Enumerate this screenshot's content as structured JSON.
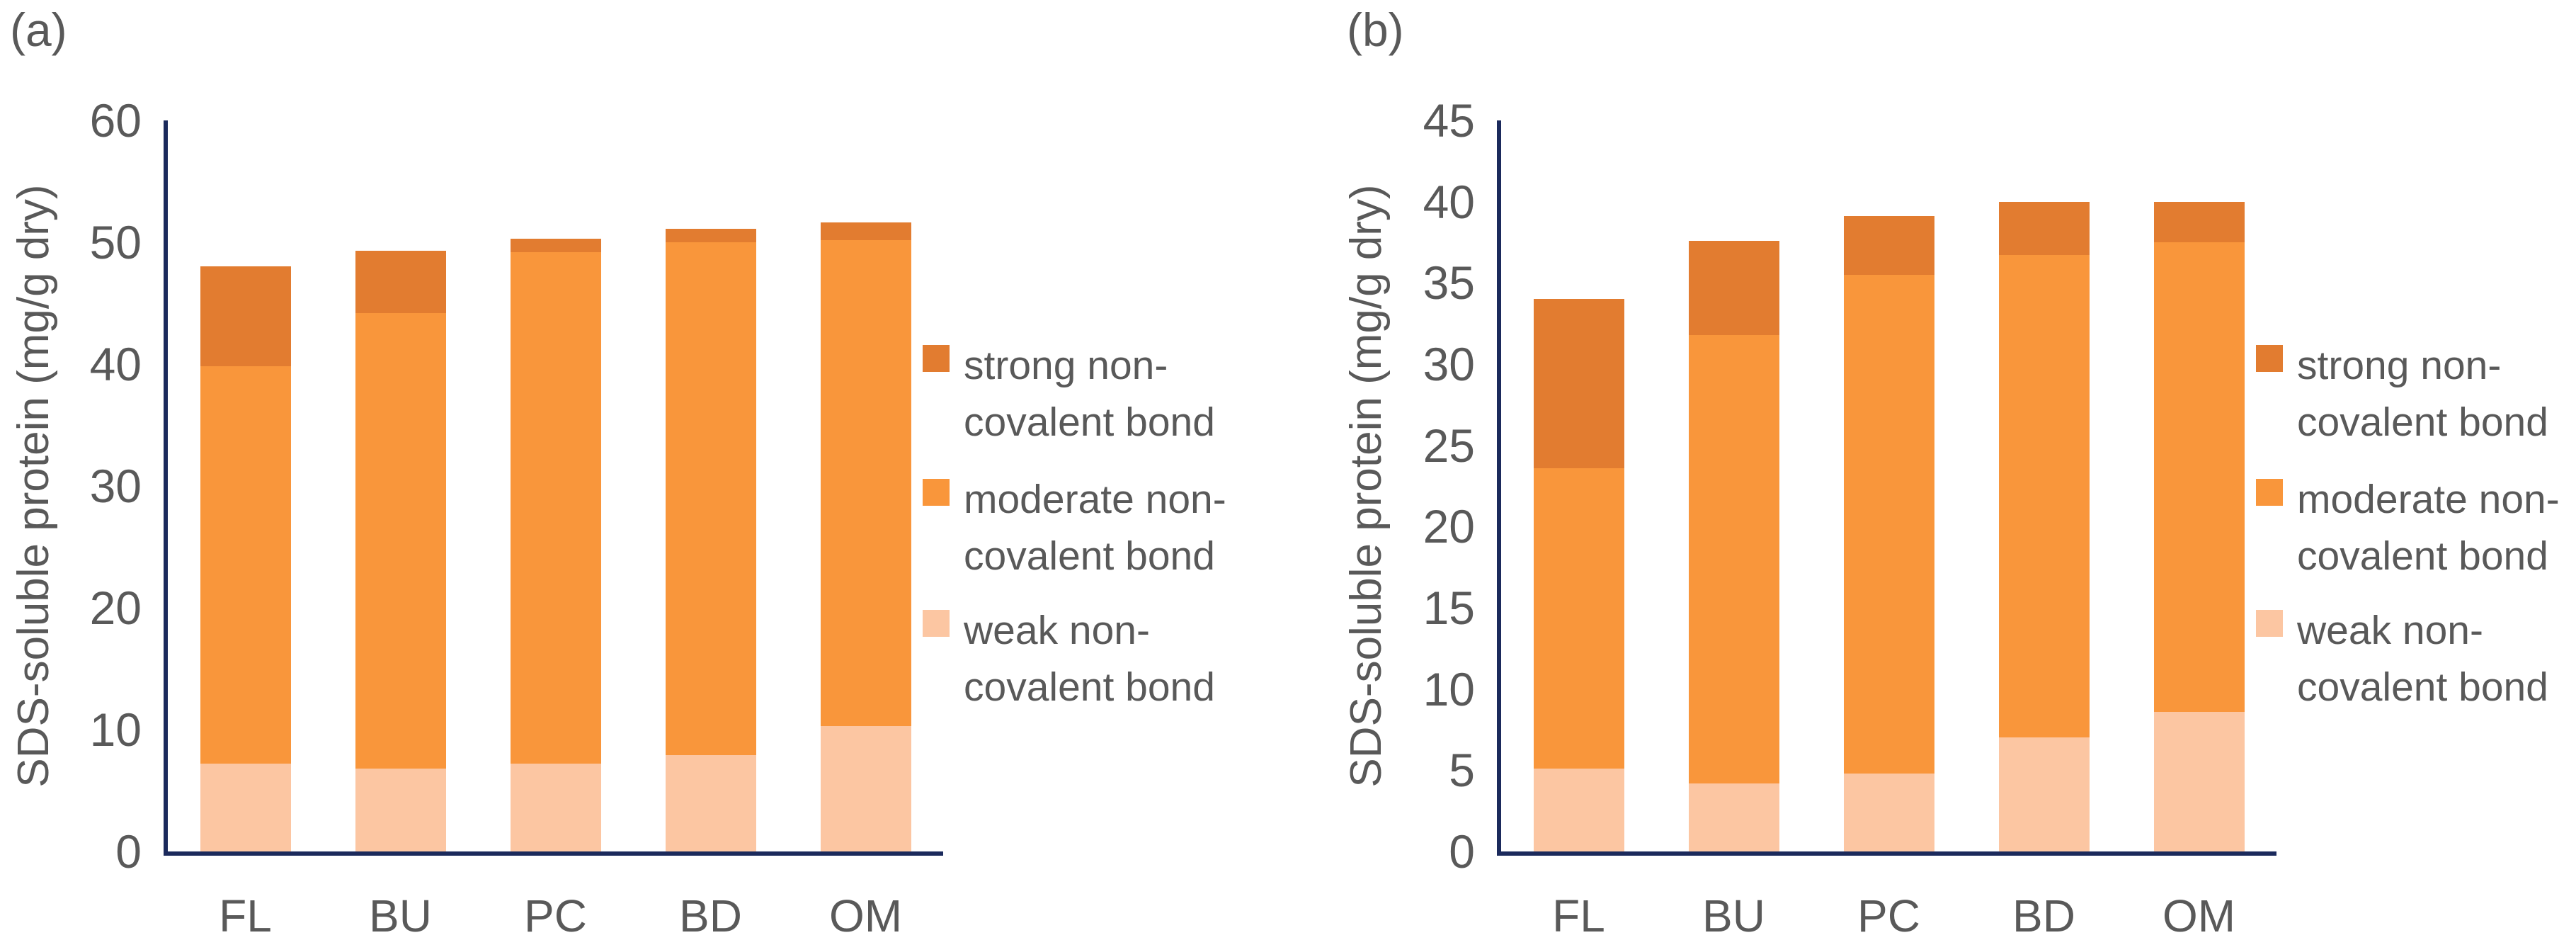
{
  "figure": {
    "background": "#FFFFFF",
    "text_color": "#595959",
    "axis_color": "#1B2A5C"
  },
  "chart_data": [
    {
      "panel_label": "(a)",
      "type": "bar",
      "stacked": true,
      "grid": false,
      "legend_position": "right",
      "ylabel": "SDS-soluble protein (mg/g dry)",
      "ylim": [
        0,
        60
      ],
      "yticks": [
        0,
        10,
        20,
        30,
        40,
        50,
        60
      ],
      "categories": [
        "FL",
        "BU",
        "PC",
        "BD",
        "OM"
      ],
      "series": [
        {
          "name": "weak non-covalent bond",
          "color": "#FCC6A2",
          "values": [
            7.2,
            6.8,
            7.2,
            7.9,
            10.3
          ]
        },
        {
          "name": "moderate non-covalent bond",
          "color": "#F9963B",
          "values": [
            32.6,
            37.4,
            42.0,
            42.1,
            39.9
          ]
        },
        {
          "name": "strong non-covalent bond",
          "color": "#E27C30",
          "values": [
            8.2,
            5.1,
            1.1,
            1.1,
            1.4
          ]
        }
      ],
      "legend": [
        {
          "lines": [
            "strong non-",
            "covalent bond"
          ],
          "color": "#E27C30"
        },
        {
          "lines": [
            "moderate non-",
            "covalent bond"
          ],
          "color": "#F9963B"
        },
        {
          "lines": [
            "weak non-",
            "covalent bond"
          ],
          "color": "#FCC6A2"
        }
      ]
    },
    {
      "panel_label": "(b)",
      "type": "bar",
      "stacked": true,
      "grid": false,
      "legend_position": "right",
      "ylabel": "SDS-soluble protein (mg/g dry)",
      "ylim": [
        0,
        45
      ],
      "yticks": [
        0,
        5,
        10,
        15,
        20,
        25,
        30,
        35,
        40,
        45
      ],
      "categories": [
        "FL",
        "BU",
        "PC",
        "BD",
        "OM"
      ],
      "series": [
        {
          "name": "weak non-covalent bond",
          "color": "#FCC6A2",
          "values": [
            5.1,
            4.2,
            4.8,
            7.0,
            8.6
          ]
        },
        {
          "name": "moderate non-covalent bond",
          "color": "#F9963B",
          "values": [
            18.5,
            27.6,
            30.7,
            29.7,
            28.9
          ]
        },
        {
          "name": "strong non-covalent bond",
          "color": "#E27C30",
          "values": [
            10.4,
            5.8,
            3.6,
            3.3,
            2.5
          ]
        }
      ],
      "legend": [
        {
          "lines": [
            "strong non-",
            "covalent bond"
          ],
          "color": "#E27C30"
        },
        {
          "lines": [
            "moderate non-",
            "covalent bond"
          ],
          "color": "#F9963B"
        },
        {
          "lines": [
            "weak non-",
            "covalent bond"
          ],
          "color": "#FCC6A2"
        }
      ]
    }
  ]
}
